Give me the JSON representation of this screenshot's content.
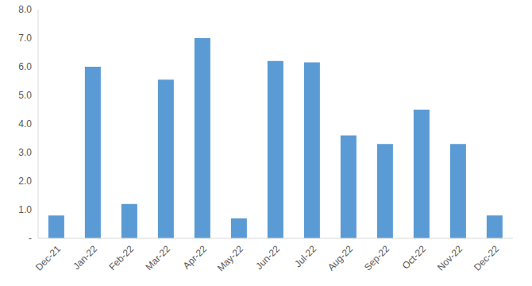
{
  "chart_data": {
    "type": "bar",
    "categories": [
      "Dec-21",
      "Jan-22",
      "Feb-22",
      "Mar-22",
      "Apr-22",
      "May-22",
      "Jun-22",
      "Jul-22",
      "Aug-22",
      "Sep-22",
      "Oct-22",
      "Nov-22",
      "Dec-22"
    ],
    "values": [
      0.8,
      6.0,
      1.2,
      5.55,
      7.0,
      0.7,
      6.2,
      6.15,
      3.6,
      3.3,
      4.5,
      3.3,
      0.8
    ],
    "color": "#5b9bd5",
    "ylim": [
      0,
      8
    ],
    "yticks": [
      {
        "value": 0,
        "label": "-"
      },
      {
        "value": 1,
        "label": "1.0"
      },
      {
        "value": 2,
        "label": "2.0"
      },
      {
        "value": 3,
        "label": "3.0"
      },
      {
        "value": 4,
        "label": "4.0"
      },
      {
        "value": 5,
        "label": "5.0"
      },
      {
        "value": 6,
        "label": "6.0"
      },
      {
        "value": 7,
        "label": "7.0"
      },
      {
        "value": 8,
        "label": "8.0"
      }
    ],
    "grid": false
  }
}
